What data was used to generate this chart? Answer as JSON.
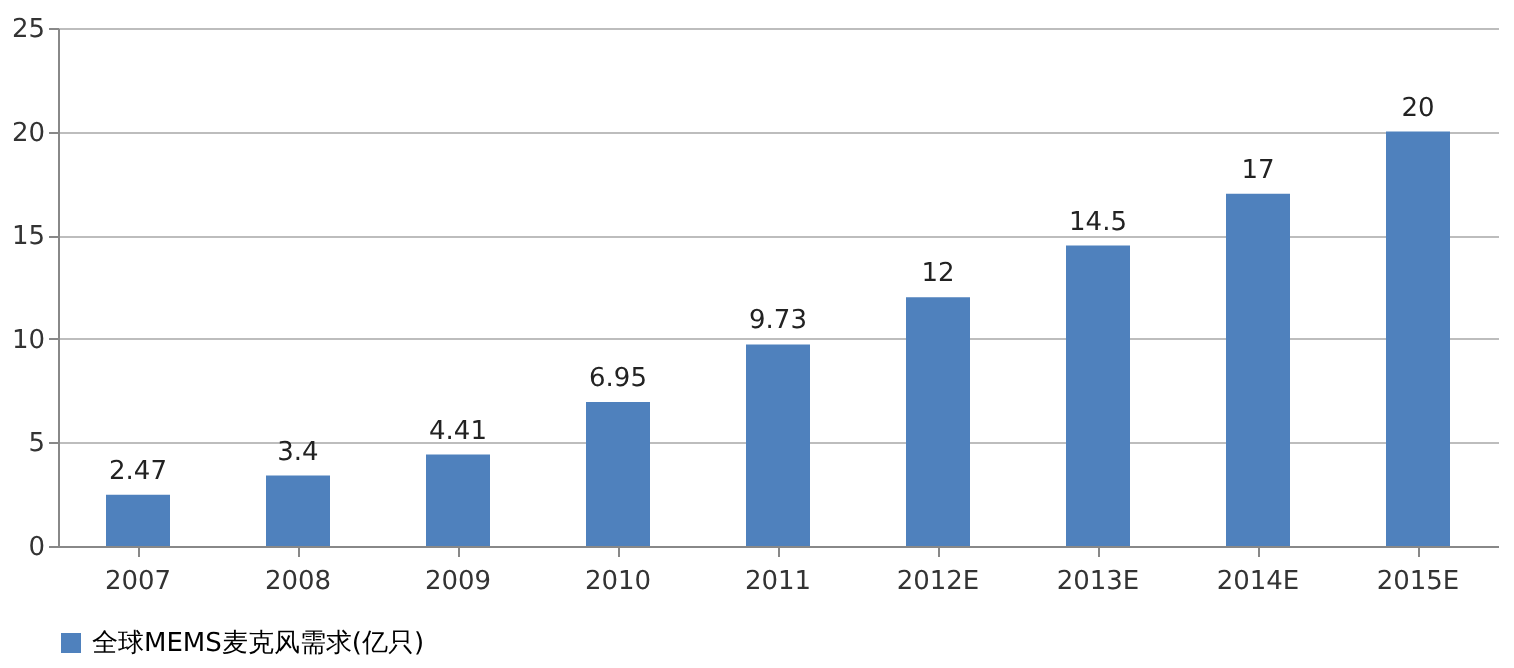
{
  "chart_data": {
    "type": "bar",
    "categories": [
      "2007",
      "2008",
      "2009",
      "2010",
      "2011",
      "2012E",
      "2013E",
      "2014E",
      "2015E"
    ],
    "series": [
      {
        "name": "全球MEMS麦克风需求(亿只)",
        "color": "#4f81bd",
        "values": [
          2.47,
          3.4,
          4.41,
          6.95,
          9.73,
          12,
          14.5,
          17,
          20
        ]
      }
    ],
    "ylim": [
      0,
      25
    ],
    "yticks": [
      0,
      5,
      10,
      15,
      20,
      25
    ],
    "grid": "y",
    "legend": "bottom",
    "data_labels": true
  }
}
